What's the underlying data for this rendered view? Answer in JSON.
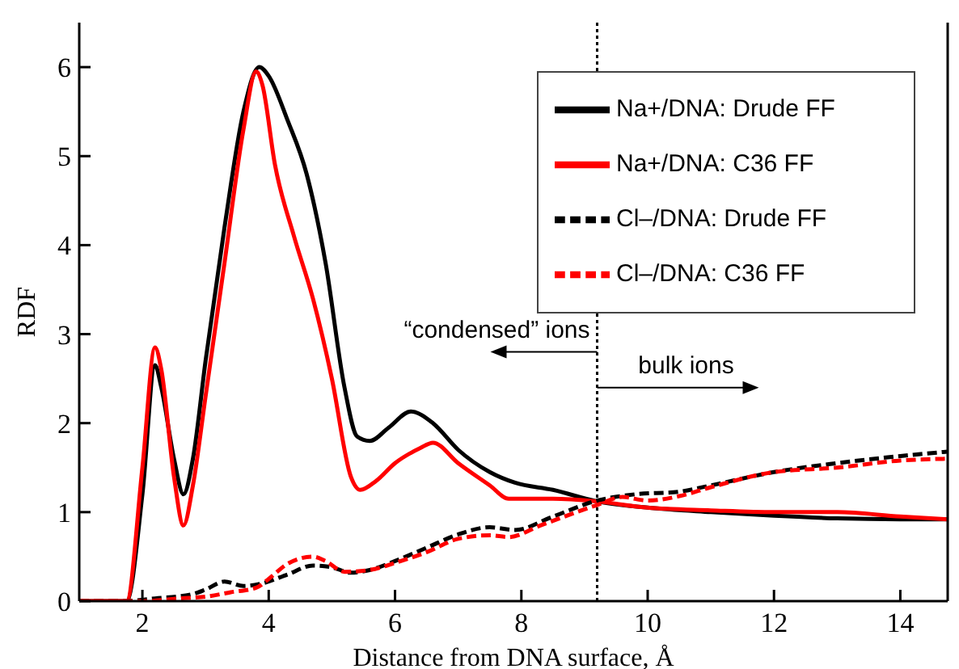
{
  "chart_data": {
    "type": "line",
    "xlabel": "Distance from DNA surface, Å",
    "ylabel": "RDF",
    "xlim": [
      1,
      14.75
    ],
    "xticks": [
      2,
      4,
      6,
      8,
      10,
      12,
      14
    ],
    "ylim": [
      0,
      6.5
    ],
    "yticks": [
      0,
      1,
      2,
      3,
      4,
      5,
      6
    ],
    "grid": false,
    "legend": "top right",
    "marker": "none",
    "annotations": [
      {
        "text": "“condensed” ions",
        "x": 9.2,
        "y": 2.8
      },
      {
        "text": "bulk ions",
        "x": 9.2,
        "y": 2.4
      }
    ],
    "ref_lines": [
      {
        "axis": "x",
        "value": 9.2,
        "line_style": "dotted",
        "color": "#000000"
      }
    ],
    "series": [
      {
        "name": "Na+/DNA: Drude FF",
        "color": "#000000",
        "line_style": "solid",
        "x": [
          1,
          1.75,
          2.0,
          2.2,
          2.3,
          2.5,
          2.65,
          2.8,
          3.0,
          3.3,
          3.6,
          3.85,
          4.0,
          4.3,
          4.6,
          4.9,
          5.2,
          5.4,
          5.6,
          5.9,
          6.25,
          6.6,
          7.0,
          7.5,
          7.9,
          8.5,
          9.2,
          10,
          11,
          12,
          13,
          14,
          14.75
        ],
        "values": [
          0,
          0,
          1.2,
          2.65,
          2.4,
          1.6,
          1.2,
          1.6,
          2.7,
          4.2,
          5.5,
          6.0,
          5.9,
          5.4,
          4.8,
          3.8,
          2.4,
          1.85,
          1.8,
          1.95,
          2.13,
          2.0,
          1.7,
          1.45,
          1.33,
          1.25,
          1.12,
          1.05,
          1.0,
          0.96,
          0.93,
          0.92,
          0.92
        ]
      },
      {
        "name": "Na+/DNA: C36 FF",
        "color": "#ff0000",
        "line_style": "solid",
        "x": [
          1,
          1.75,
          2.0,
          2.2,
          2.3,
          2.5,
          2.65,
          2.8,
          3.0,
          3.3,
          3.6,
          3.8,
          3.9,
          4.1,
          4.4,
          4.7,
          5.0,
          5.3,
          5.45,
          5.7,
          6.0,
          6.4,
          6.6,
          7.0,
          7.5,
          7.8,
          8.5,
          9.2,
          10,
          11,
          12,
          13,
          14,
          14.75
        ],
        "values": [
          0,
          0,
          1.5,
          2.85,
          2.6,
          1.4,
          0.85,
          1.3,
          2.3,
          3.8,
          5.3,
          5.95,
          5.8,
          4.9,
          4.1,
          3.4,
          2.5,
          1.4,
          1.25,
          1.35,
          1.55,
          1.72,
          1.78,
          1.55,
          1.3,
          1.15,
          1.15,
          1.12,
          1.05,
          1.02,
          1.0,
          1.0,
          0.95,
          0.92
        ]
      },
      {
        "name": "Cl–/DNA:   Drude FF",
        "color": "#000000",
        "line_style": "dashed",
        "x": [
          1,
          1.7,
          2.2,
          2.8,
          3.0,
          3.3,
          3.6,
          3.9,
          4.3,
          4.7,
          5.0,
          5.3,
          5.6,
          6.0,
          6.5,
          7.0,
          7.5,
          7.9,
          8.5,
          9.2,
          9.8,
          10.5,
          11,
          12,
          13,
          14,
          14.75
        ],
        "values": [
          0,
          0,
          0.03,
          0.08,
          0.13,
          0.22,
          0.17,
          0.2,
          0.3,
          0.4,
          0.38,
          0.32,
          0.35,
          0.45,
          0.6,
          0.75,
          0.83,
          0.8,
          0.95,
          1.13,
          1.2,
          1.23,
          1.3,
          1.45,
          1.55,
          1.63,
          1.68
        ]
      },
      {
        "name": "Cl–/DNA:   C36 FF",
        "color": "#ff0000",
        "line_style": "dashed",
        "x": [
          1,
          2.0,
          2.6,
          3.0,
          3.4,
          3.8,
          4.0,
          4.3,
          4.7,
          4.9,
          5.2,
          5.6,
          6.0,
          6.5,
          7.0,
          7.5,
          7.8,
          8.3,
          9.2,
          9.6,
          10,
          10.5,
          11,
          12,
          13,
          14,
          14.75
        ],
        "values": [
          0,
          0,
          0.03,
          0.05,
          0.1,
          0.15,
          0.25,
          0.42,
          0.5,
          0.45,
          0.33,
          0.35,
          0.43,
          0.55,
          0.7,
          0.74,
          0.72,
          0.85,
          1.08,
          1.17,
          1.13,
          1.18,
          1.28,
          1.45,
          1.5,
          1.58,
          1.6
        ]
      }
    ]
  }
}
